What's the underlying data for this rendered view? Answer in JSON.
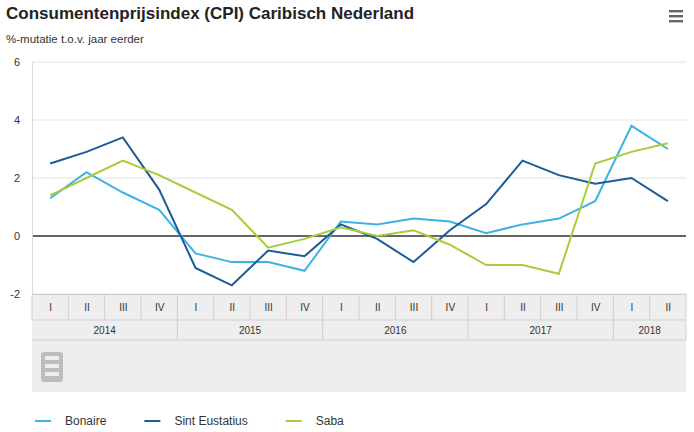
{
  "chart_data": {
    "type": "line",
    "title": "Consumentenprijsindex (CPI) Caribisch Nederland",
    "subtitle": "%-mutatie t.o.v. jaar eerder",
    "categories": [
      "I",
      "II",
      "III",
      "IV",
      "I",
      "II",
      "III",
      "IV",
      "I",
      "II",
      "III",
      "IV",
      "I",
      "II",
      "III",
      "IV",
      "I",
      "II"
    ],
    "category_groups": [
      {
        "label": "2014",
        "size": 4
      },
      {
        "label": "2015",
        "size": 4
      },
      {
        "label": "2016",
        "size": 4
      },
      {
        "label": "2017",
        "size": 4
      },
      {
        "label": "2018",
        "size": 2
      }
    ],
    "series": [
      {
        "name": "Bonaire",
        "color": "#3db3e3",
        "values": [
          1.3,
          2.2,
          1.5,
          0.9,
          -0.6,
          -0.9,
          -0.9,
          -1.2,
          0.5,
          0.4,
          0.6,
          0.5,
          0.1,
          0.4,
          0.6,
          1.2,
          3.8,
          3.0
        ]
      },
      {
        "name": "Sint Eustatius",
        "color": "#1b5b97",
        "values": [
          2.5,
          2.9,
          3.4,
          1.6,
          -1.1,
          -1.7,
          -0.5,
          -0.7,
          0.4,
          -0.1,
          -0.9,
          0.2,
          1.1,
          2.6,
          2.1,
          1.8,
          2.0,
          1.2
        ]
      },
      {
        "name": "Saba",
        "color": "#a6cd3b",
        "values": [
          1.4,
          2.0,
          2.6,
          2.1,
          1.5,
          0.9,
          -0.4,
          -0.1,
          0.3,
          0.0,
          0.2,
          -0.3,
          -1.0,
          -1.0,
          -1.3,
          2.5,
          2.9,
          3.2
        ]
      }
    ],
    "ylim": [
      -2,
      6
    ],
    "yticks": [
      -2,
      0,
      2,
      4,
      6
    ],
    "grid": true,
    "legend": "bottom"
  }
}
